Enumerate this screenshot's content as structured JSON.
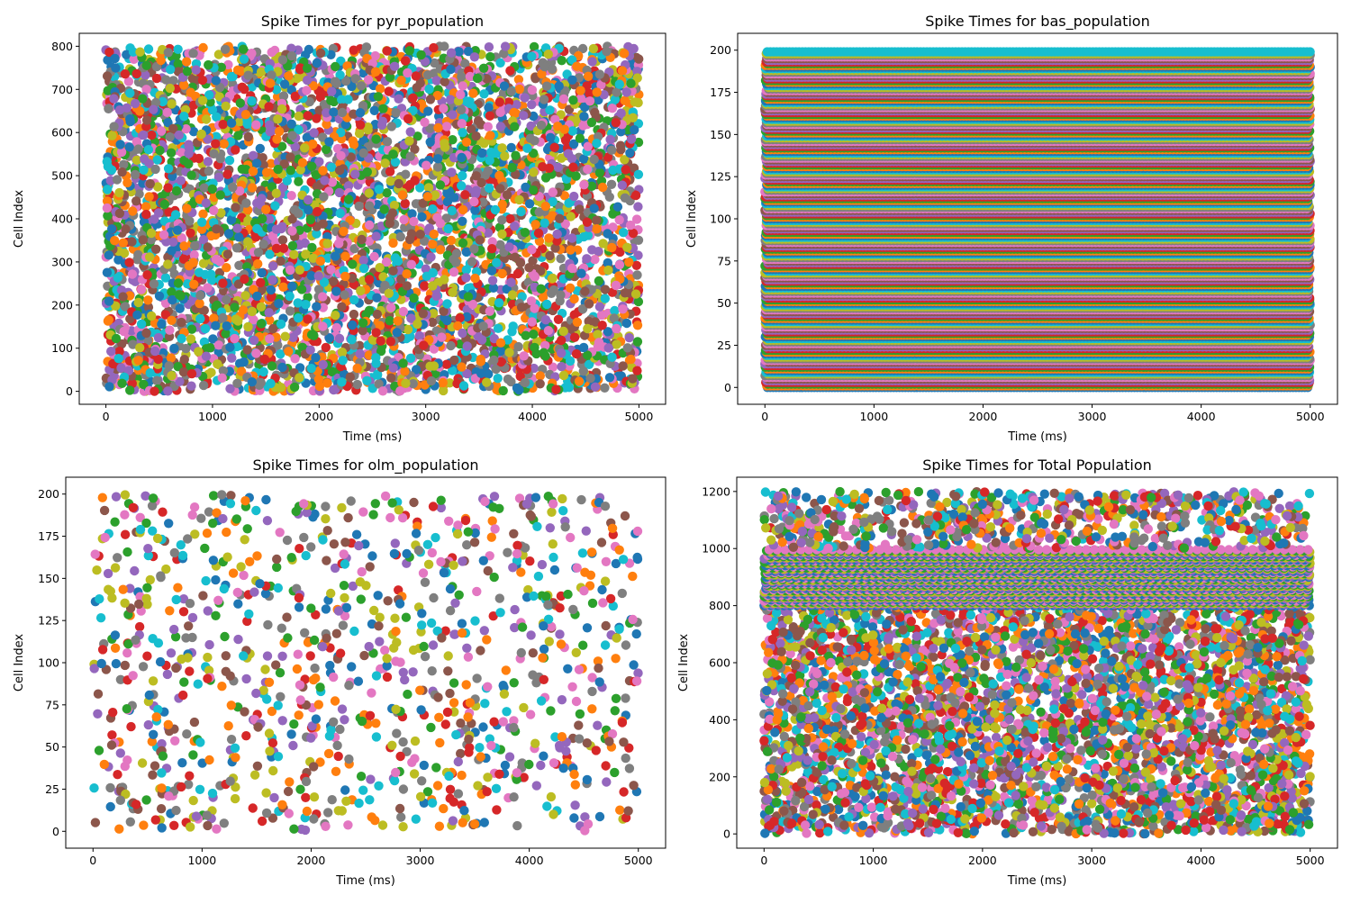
{
  "chart_data": [
    {
      "type": "scatter",
      "title": "Spike Times for pyr_population",
      "xlabel": "Time (ms)",
      "ylabel": "Cell Index",
      "xlim": [
        -250,
        5250
      ],
      "ylim": [
        -30,
        830
      ],
      "xticks": [
        0,
        1000,
        2000,
        3000,
        4000,
        5000
      ],
      "yticks": [
        0,
        100,
        200,
        300,
        400,
        500,
        600,
        700,
        800
      ],
      "pattern": "dense",
      "cells": 800,
      "t_max": 5000,
      "grid": false,
      "legend": "none"
    },
    {
      "type": "scatter",
      "title": "Spike Times for bas_population",
      "xlabel": "Time (ms)",
      "ylabel": "Cell Index",
      "xlim": [
        -250,
        5250
      ],
      "ylim": [
        -10,
        210
      ],
      "xticks": [
        0,
        1000,
        2000,
        3000,
        4000,
        5000
      ],
      "yticks": [
        0,
        25,
        50,
        75,
        100,
        125,
        150,
        175,
        200
      ],
      "pattern": "rows",
      "cells": 200,
      "t_max": 5000,
      "grid": false,
      "legend": "none"
    },
    {
      "type": "scatter",
      "title": "Spike Times for olm_population",
      "xlabel": "Time (ms)",
      "ylabel": "Cell Index",
      "xlim": [
        -250,
        5250
      ],
      "ylim": [
        -10,
        210
      ],
      "xticks": [
        0,
        1000,
        2000,
        3000,
        4000,
        5000
      ],
      "yticks": [
        0,
        25,
        50,
        75,
        100,
        125,
        150,
        175,
        200
      ],
      "pattern": "sparse",
      "cells": 200,
      "t_max": 5000,
      "grid": false,
      "legend": "none"
    },
    {
      "type": "scatter",
      "title": "Spike Times for Total Population",
      "xlabel": "Time (ms)",
      "ylabel": "Cell Index",
      "xlim": [
        -250,
        5250
      ],
      "ylim": [
        -50,
        1250
      ],
      "xticks": [
        0,
        1000,
        2000,
        3000,
        4000,
        5000
      ],
      "yticks": [
        0,
        200,
        400,
        600,
        800,
        1000,
        1200
      ],
      "pattern": "total",
      "cells": 1200,
      "t_max": 5000,
      "grid": false,
      "legend": "none"
    }
  ],
  "colors": [
    "#1f77b4",
    "#ff7f0e",
    "#2ca02c",
    "#d62728",
    "#9467bd",
    "#8c564b",
    "#e377c2",
    "#7f7f7f",
    "#bcbd22",
    "#17becf"
  ]
}
